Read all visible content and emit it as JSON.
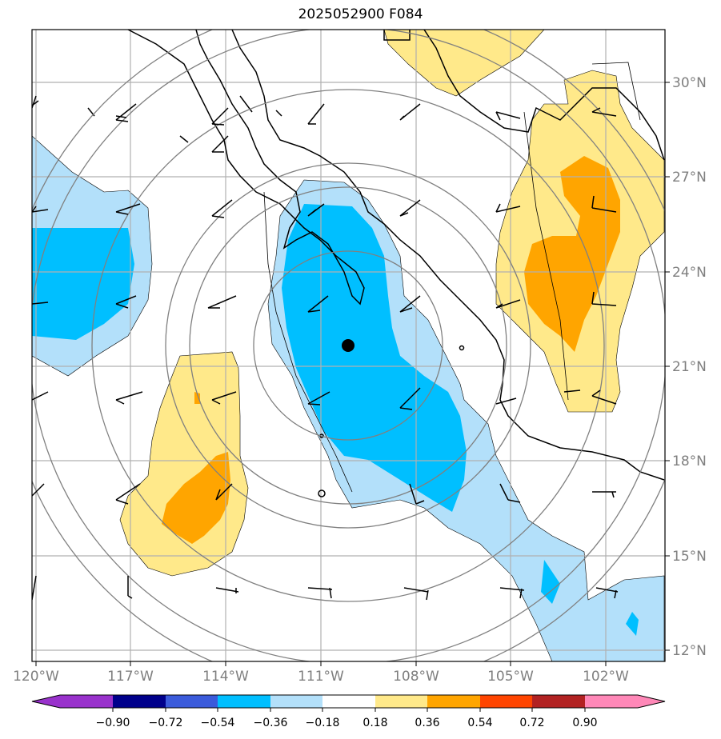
{
  "title": "2025052900 F084",
  "map": {
    "lon_range": [
      -120.2,
      -100.0
    ],
    "lat_range": [
      11.6,
      31.9
    ],
    "lon_ticks": [
      {
        "value": -120,
        "label": "120°W"
      },
      {
        "value": -117,
        "label": "117°W"
      },
      {
        "value": -114,
        "label": "114°W"
      },
      {
        "value": -111,
        "label": "111°W"
      },
      {
        "value": -108,
        "label": "108°W"
      },
      {
        "value": -105,
        "label": "105°W"
      },
      {
        "value": -102,
        "label": "102°W"
      }
    ],
    "lat_ticks": [
      {
        "value": 30,
        "label": "30°N"
      },
      {
        "value": 27,
        "label": "27°N"
      },
      {
        "value": 24,
        "label": "24°N"
      },
      {
        "value": 21,
        "label": "21°N"
      },
      {
        "value": 18,
        "label": "18°N"
      },
      {
        "value": 15,
        "label": "15°N"
      },
      {
        "value": 12,
        "label": "12°N"
      }
    ],
    "storm_center": {
      "lon": -110.1,
      "lat": 21.7
    },
    "range_ring_radii_deg": [
      3,
      5,
      7,
      9,
      11
    ],
    "colors": {
      "neg_light": "#b3e0fa",
      "neg_mid": "#00bfff",
      "pos_light": "#ffe98a",
      "pos_mid": "#ffa500",
      "grid": "#b0b0b0",
      "rings": "#808080",
      "coast": "#000000"
    }
  },
  "colorbar": {
    "ticks": [
      "−0.90",
      "−0.72",
      "−0.54",
      "−0.36",
      "−0.18",
      "0.18",
      "0.36",
      "0.54",
      "0.72",
      "0.90"
    ],
    "colors": [
      "#9932cc",
      "#00008b",
      "#3b5bdb",
      "#00bfff",
      "#b3e0fa",
      "#ffffff",
      "#ffe98a",
      "#ffa500",
      "#ff4500",
      "#b22222",
      "#ff88b8"
    ]
  }
}
